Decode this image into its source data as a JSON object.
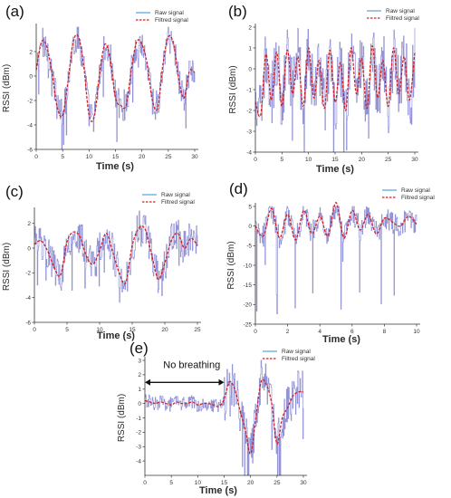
{
  "chart_data": [
    {
      "panel": "(a)",
      "type": "line",
      "xlabel": "Time (s)",
      "ylabel": "RSSI (dBm)",
      "xlim": [
        0,
        30
      ],
      "ylim": [
        -6,
        4
      ],
      "xticks": [
        0,
        5,
        10,
        15,
        20,
        25,
        30
      ],
      "yticks": [
        -6,
        -4,
        -2,
        0,
        2
      ],
      "legend": [
        "Raw signal",
        "Filtred signal"
      ],
      "period": 6.1,
      "amp": 3.0,
      "offset": -0.3,
      "phase": 0.2,
      "noise": 1.3,
      "spike": -2.2,
      "series": [
        {
          "name": "Filtred signal",
          "x": [
            0,
            1,
            2,
            3,
            4,
            5,
            6,
            7,
            8,
            9,
            10,
            11,
            12,
            13,
            14,
            15,
            16,
            17,
            18,
            19,
            20,
            21,
            22,
            23,
            24,
            25,
            26,
            27,
            28,
            29,
            30
          ],
          "values": [
            0.5,
            2.8,
            2.4,
            0.2,
            -2.6,
            -3.2,
            -0.5,
            2.8,
            3.2,
            0.8,
            -3.2,
            -3.3,
            0.2,
            2.6,
            1.4,
            -1.8,
            -2.4,
            -2.4,
            0.5,
            2.8,
            2.6,
            1.0,
            -2.0,
            -2.6,
            1.0,
            3.2,
            2.6,
            -0.3,
            -1.8,
            0.4,
            0.3
          ]
        }
      ]
    },
    {
      "panel": "(b)",
      "type": "line",
      "xlabel": "Time (s)",
      "ylabel": "RSSI (dBm)",
      "xlim": [
        0,
        30
      ],
      "ylim": [
        -4,
        2
      ],
      "xticks": [
        0,
        5,
        10,
        15,
        20,
        25,
        30
      ],
      "yticks": [
        -4,
        -3,
        -2,
        -1,
        0,
        1,
        2
      ],
      "legend": [
        "Raw signal",
        "Filtred signal"
      ],
      "period": 2.7,
      "amp": 1.3,
      "offset": -0.5,
      "phase": 0.5,
      "noise": 1.5,
      "spike": -1.6,
      "series": [
        {
          "name": "Filtred signal",
          "x": [
            0,
            1,
            2,
            3,
            4,
            5,
            6,
            7,
            8,
            9,
            10,
            11,
            12,
            13,
            14,
            15,
            16,
            17,
            18,
            19,
            20,
            21,
            22,
            23,
            24,
            25,
            26,
            27,
            28,
            29,
            30
          ],
          "values": [
            -1.6,
            -2.2,
            0.7,
            -1.5,
            0.8,
            -1.8,
            0.9,
            -1.2,
            0.6,
            -1.8,
            1.0,
            -1.4,
            0.4,
            -1.9,
            0.9,
            -1.6,
            0.3,
            -2.0,
            1.0,
            -1.2,
            0.5,
            -1.9,
            1.1,
            -1.4,
            0.4,
            -1.8,
            1.0,
            -1.2,
            0.6,
            -1.5,
            0.8
          ]
        }
      ]
    },
    {
      "panel": "(c)",
      "type": "line",
      "xlabel": "Time (s)",
      "ylabel": "RSSI (dBm)",
      "xlim": [
        0,
        25
      ],
      "ylim": [
        -6,
        3
      ],
      "xticks": [
        0,
        5,
        10,
        15,
        20,
        25
      ],
      "yticks": [
        -6,
        -4,
        -2,
        0,
        2
      ],
      "legend": [
        "Raw signal",
        "Filtred signal"
      ],
      "period": 4.3,
      "amp": 1.9,
      "offset": -0.3,
      "phase": 0.3,
      "noise": 1.5,
      "spike": -2.2,
      "series": [
        {
          "name": "Filtred signal",
          "x": [
            0,
            1,
            2,
            3,
            4,
            5,
            6,
            7,
            8,
            9,
            10,
            11,
            12,
            13,
            14,
            15,
            16,
            17,
            18,
            19,
            20,
            21,
            22,
            23,
            24,
            25
          ],
          "values": [
            0.3,
            0.6,
            -0.2,
            -1.5,
            -2.2,
            0.5,
            1.3,
            0.9,
            -0.7,
            -1.3,
            -0.2,
            1.2,
            -0.3,
            -2.0,
            -2.8,
            0.2,
            1.6,
            1.5,
            -0.6,
            -2.5,
            -1.2,
            0.6,
            1.2,
            0.0,
            0.8,
            0.2
          ]
        }
      ]
    },
    {
      "panel": "(d)",
      "type": "line",
      "xlabel": "Time (s)",
      "ylabel": "RSSI (dBm)",
      "xlim": [
        0,
        10
      ],
      "ylim": [
        -25,
        5
      ],
      "xticks": [
        0,
        2,
        4,
        6,
        8,
        10
      ],
      "yticks": [
        -25,
        -20,
        -15,
        -10,
        -5,
        0,
        5
      ],
      "legend": [
        "Raw signal",
        "Filtred signal"
      ],
      "period": 0.95,
      "amp": 3.2,
      "offset": 0.8,
      "phase": 0.0,
      "noise": 3.0,
      "spike": -16,
      "series": [
        {
          "name": "Filtred signal",
          "x": [
            0,
            0.5,
            1,
            1.5,
            2,
            2.5,
            3,
            3.5,
            4,
            4.5,
            5,
            5.5,
            6,
            6.5,
            7,
            7.5,
            8,
            8.5,
            9,
            9.5,
            10
          ],
          "values": [
            0.0,
            -2.5,
            4.5,
            -3.0,
            3.0,
            -3.5,
            4.0,
            -2.0,
            2.5,
            -2.5,
            6.0,
            -3.0,
            4.0,
            -1.0,
            3.0,
            -2.0,
            2.0,
            1.0,
            0.0,
            2.5,
            0.5
          ]
        }
      ]
    },
    {
      "panel": "(e)",
      "type": "line",
      "xlabel": "Time (s)",
      "ylabel": "RSSI (dBm)",
      "xlim": [
        0,
        30
      ],
      "ylim": [
        -5,
        3
      ],
      "xticks": [
        0,
        5,
        10,
        15,
        20,
        25,
        30
      ],
      "yticks": [
        -4,
        -3,
        -2,
        -1,
        0,
        1,
        2,
        3
      ],
      "legend": [
        "Raw signal",
        "Filtred signal"
      ],
      "annotation": "No breathing",
      "breath_start": 15,
      "period": 5.5,
      "amp": 1.8,
      "offset": -1.0,
      "phase": 0.0,
      "noise": 1.6,
      "spike": -2.2,
      "series": [
        {
          "name": "Filtred signal",
          "x": [
            0,
            1,
            2,
            3,
            4,
            5,
            6,
            7,
            8,
            9,
            10,
            11,
            12,
            13,
            14,
            15,
            16,
            17,
            18,
            19,
            20,
            21,
            22,
            23,
            24,
            25,
            26,
            27,
            28,
            29,
            30
          ],
          "values": [
            0.2,
            0.1,
            0.0,
            0.1,
            0.0,
            -0.1,
            0.1,
            0.0,
            0.0,
            0.1,
            -0.1,
            0.0,
            0.0,
            -0.1,
            -0.2,
            0.3,
            1.5,
            1.0,
            -0.5,
            -1.8,
            -3.5,
            -1.0,
            1.5,
            1.3,
            0.0,
            -2.8,
            -1.0,
            -0.3,
            0.5,
            0.8,
            0.8
          ]
        }
      ]
    }
  ],
  "colors": {
    "raw": "#8080d0",
    "filtered": "#d42020",
    "legend_raw": "#2f8fd8"
  }
}
